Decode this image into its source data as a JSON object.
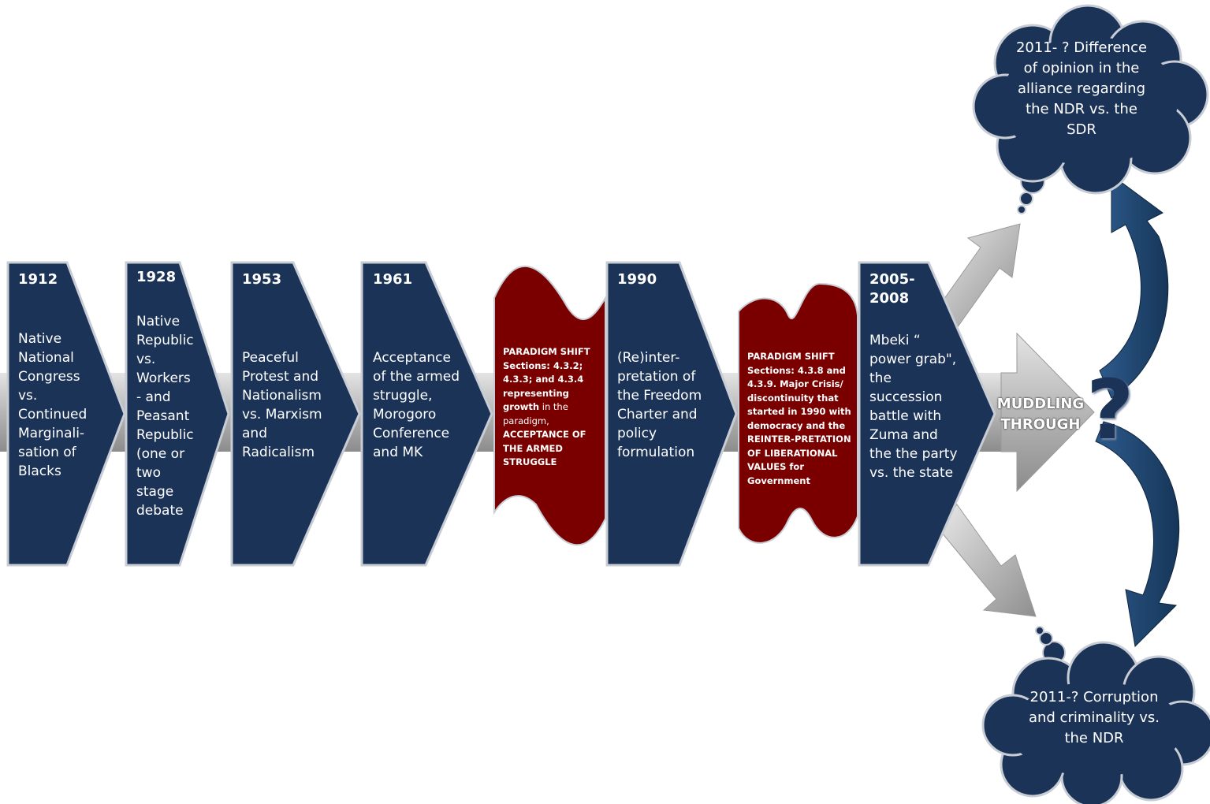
{
  "stages": [
    {
      "year": "1912",
      "text": "Native National Congress vs. Continued Marginali-sation of Blacks"
    },
    {
      "year": "1928",
      "text": "Native Republic vs. Workers - and Peasant Republic (one or two stage debate"
    },
    {
      "year": "1953",
      "text": "Peaceful Protest and Nationalism vs. Marxism and Radicalism"
    },
    {
      "year": "1961",
      "text": "Acceptance of the armed struggle, Morogoro Conference and MK"
    },
    {
      "year": "1990",
      "text": "(Re)inter-pretation of the Freedom Charter and policy formulation"
    },
    {
      "year": "2005-2008",
      "text": "Mbeki “ power grab\", the succession battle with Zuma and the the party vs. the state"
    }
  ],
  "shifts": [
    {
      "bold1": "PARADIGM SHIFT Sections: 4.3.2; 4.3.3; and 4.3.4 representing growth",
      "normal": " in the paradigm, ",
      "bold2": "ACCEPTANCE OF THE ARMED STRUGGLE"
    },
    {
      "bold1": "PARADIGM SHIFT Sections: 4.3.8 and 4.3.9. Major Crisis/ discontinuity that started in 1990 with democracy and the REINTER-PRETATION OF LIBERATIONAL VALUES for Government",
      "normal": "",
      "bold2": ""
    }
  ],
  "muddling": "MUDDLING THROUGH",
  "question_mark": "?",
  "clouds": {
    "top": "2011- ? Difference of opinion in the alliance regarding the NDR vs. the SDR",
    "bottom": "2011-? Corruption and criminality vs. the NDR"
  },
  "colors": {
    "navy": "#1c3358",
    "maroon": "#7a0000",
    "grey_arrow": "#b8b8b8",
    "outline": "#c8ccd4"
  }
}
